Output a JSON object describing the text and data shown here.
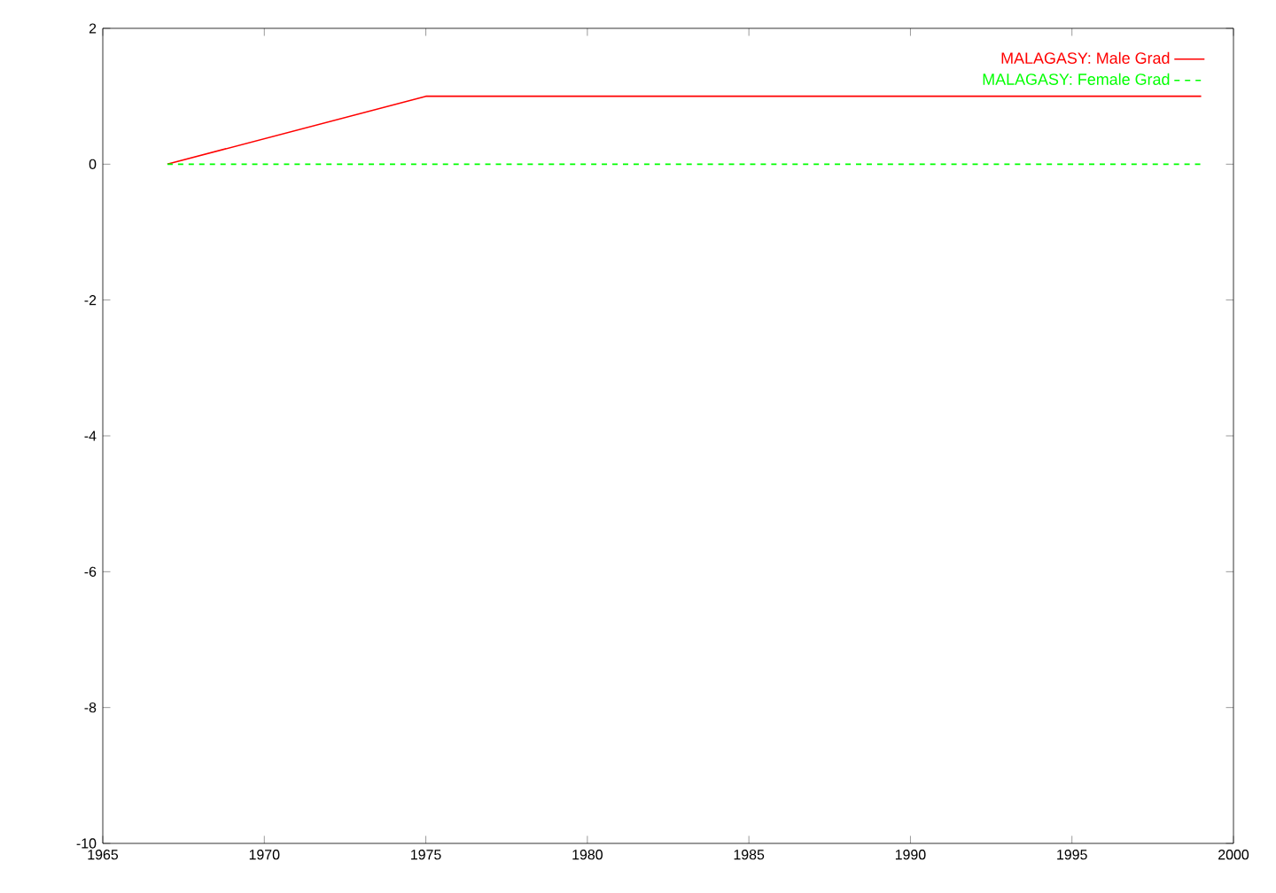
{
  "chart_data": {
    "type": "line",
    "x": [
      1967,
      1975,
      1999
    ],
    "series": [
      {
        "name": "MALAGASY: Male Grad",
        "color": "#ff0000",
        "values": [
          0,
          1,
          1
        ],
        "line_style": "solid"
      },
      {
        "name": "MALAGASY: Female Grad",
        "color": "#00ff00",
        "values": [
          0,
          0,
          0
        ],
        "line_style": "dashed"
      }
    ],
    "xlim": [
      1965,
      2000
    ],
    "xticks": [
      1965,
      1970,
      1975,
      1980,
      1985,
      1990,
      1995,
      2000
    ],
    "ylim": [
      -10,
      2
    ],
    "yticks": [
      -10,
      -8,
      -6,
      -4,
      -2,
      0,
      2
    ],
    "grid": false,
    "legend": "top right",
    "marker": "none"
  }
}
